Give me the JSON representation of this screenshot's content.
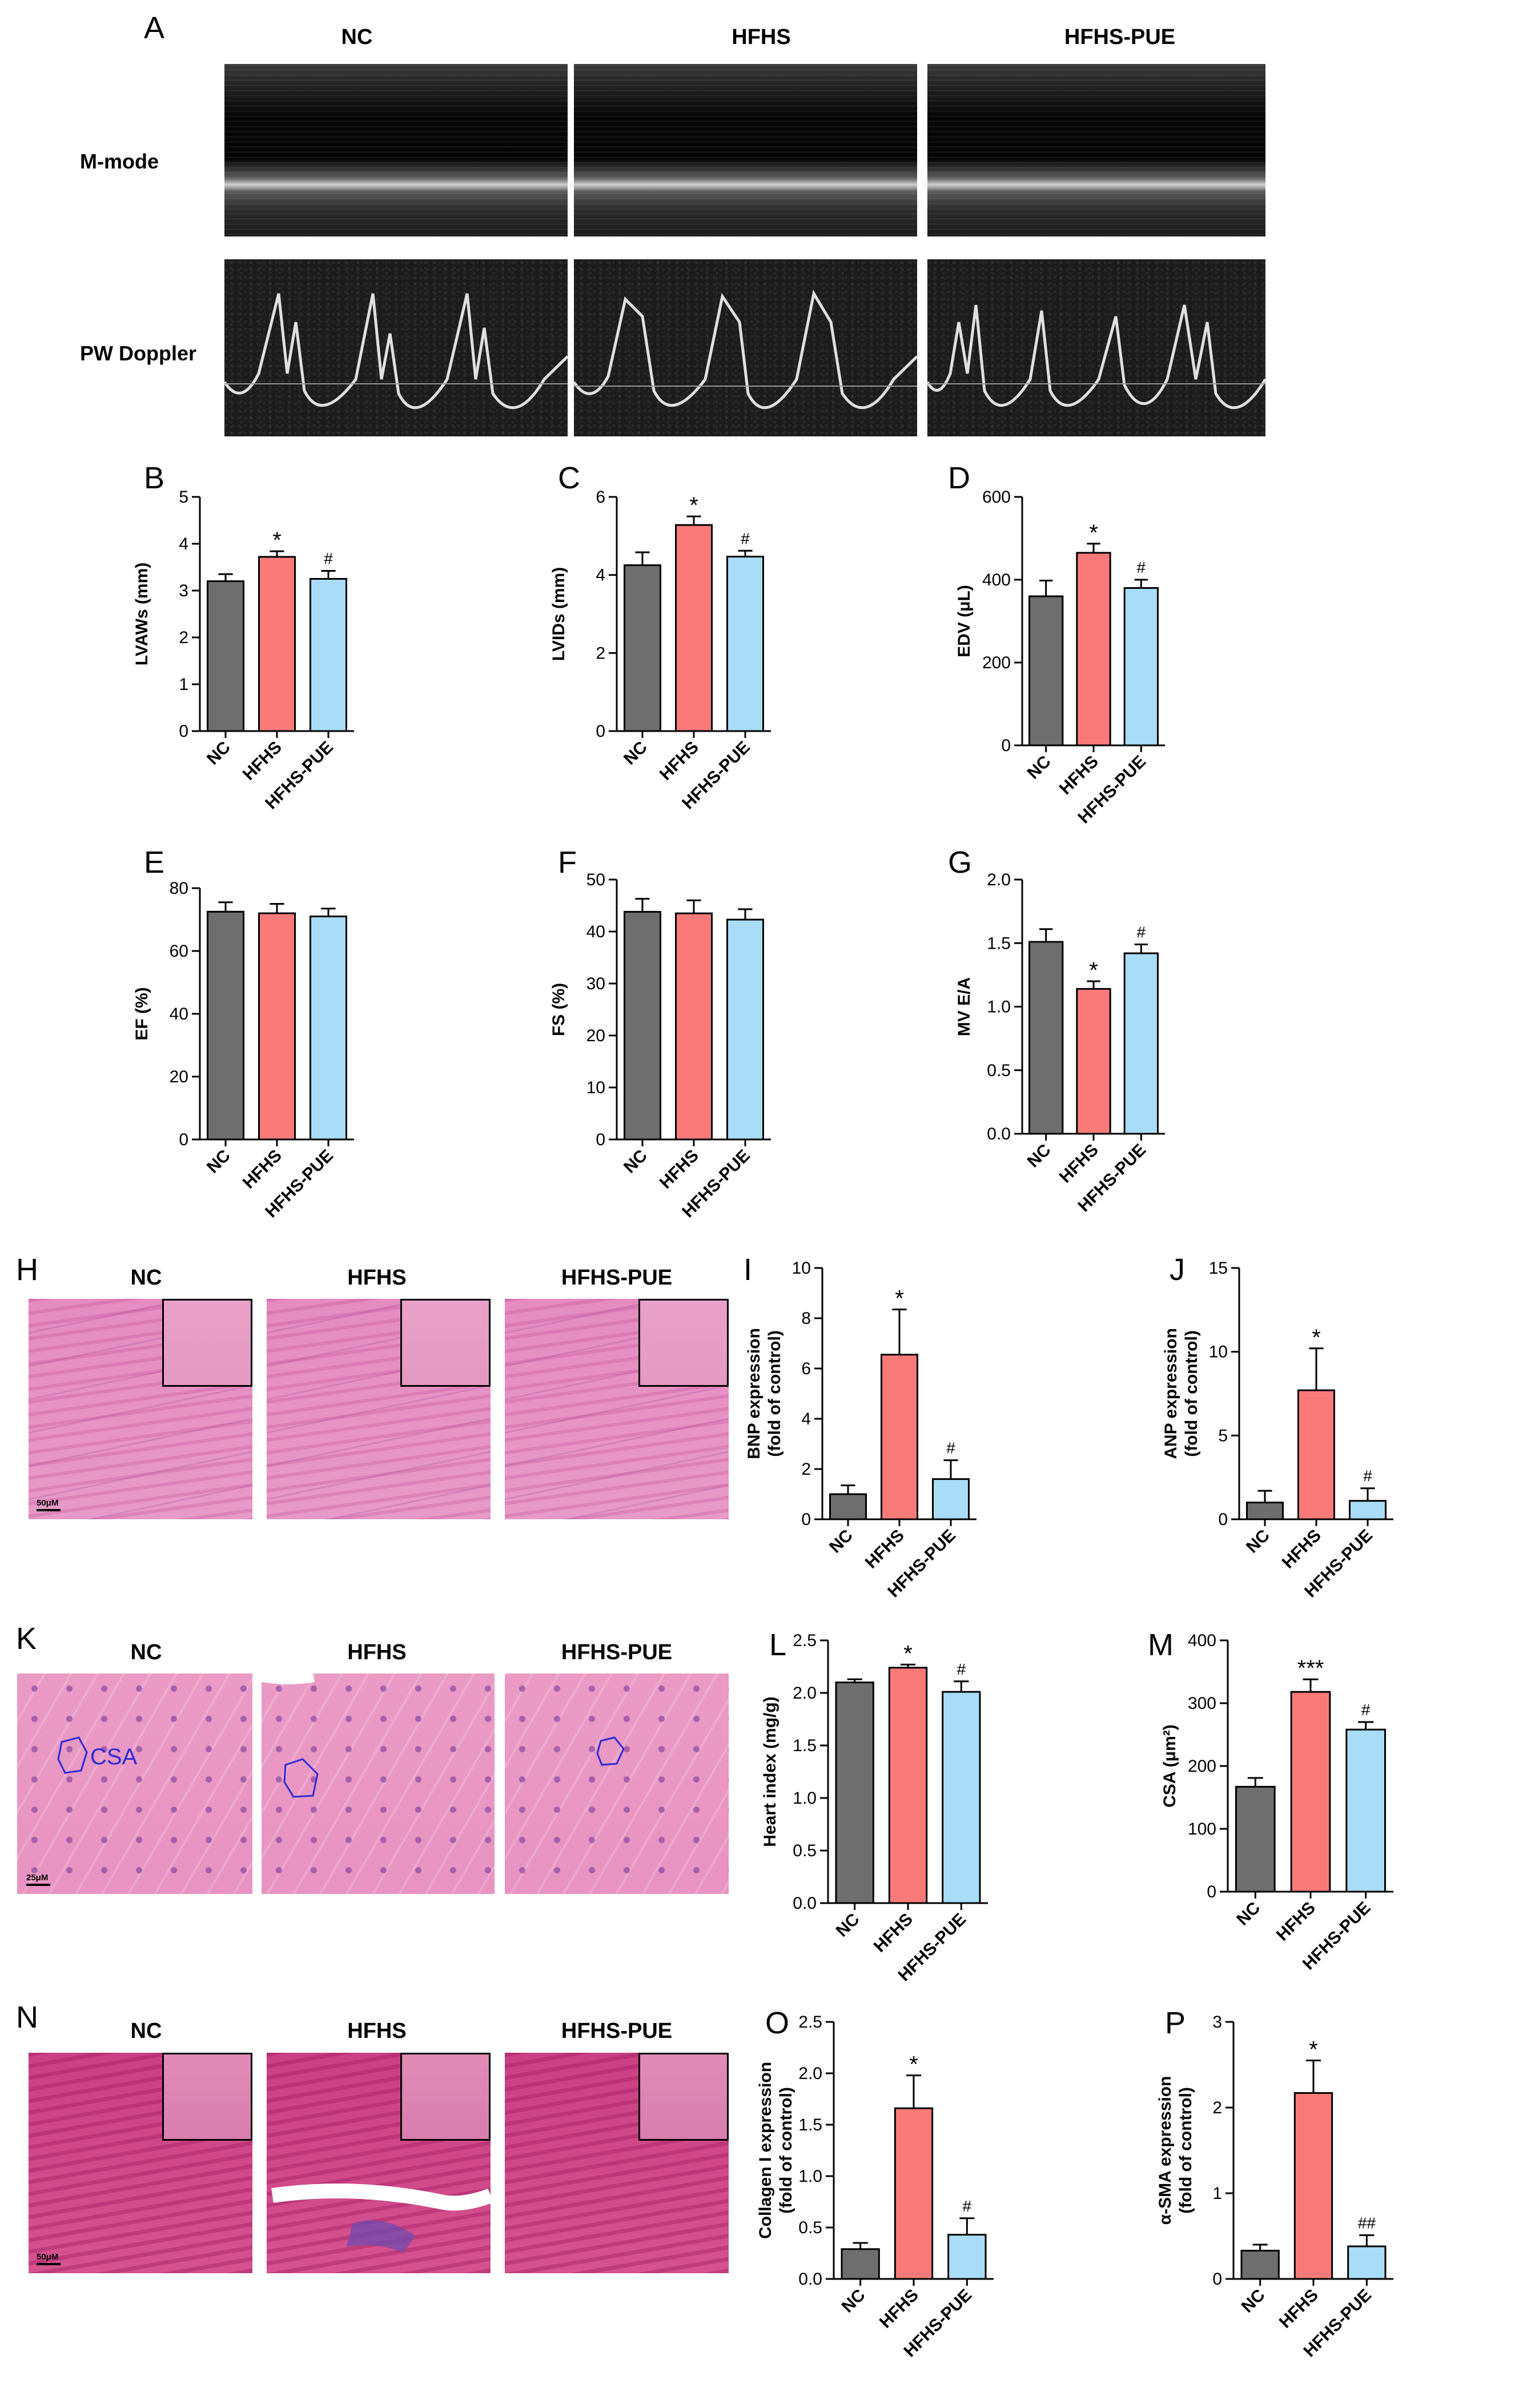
{
  "colors": {
    "nc": "#6e6e6e",
    "hfhs": "#fa7a7a",
    "pue": "#a9dcf6"
  },
  "groups": [
    "NC",
    "HFHS",
    "HFHS-PUE"
  ],
  "panel_A": {
    "letter": "A",
    "rows": [
      "M-mode",
      "PW Doppler"
    ],
    "groups": [
      "NC",
      "HFHS",
      "HFHS-PUE"
    ]
  },
  "panel_H": {
    "letter": "H",
    "groups": [
      "NC",
      "HFHS",
      "HFHS-PUE"
    ],
    "scale": "50μM"
  },
  "panel_K": {
    "letter": "K",
    "groups": [
      "NC",
      "HFHS",
      "HFHS-PUE"
    ],
    "scale": "25μM",
    "roi_label": "CSA"
  },
  "panel_N": {
    "letter": "N",
    "groups": [
      "NC",
      "HFHS",
      "HFHS-PUE"
    ],
    "scale": "50μM"
  },
  "chart_data": [
    {
      "id": "B",
      "type": "bar",
      "ylabel": "LVAWs (mm)",
      "categories": [
        "NC",
        "HFHS",
        "HFHS-PUE"
      ],
      "values": [
        3.2,
        3.72,
        3.25
      ],
      "errors": [
        0.15,
        0.12,
        0.17
      ],
      "ylim": [
        0,
        5
      ],
      "yticks": [
        0,
        1,
        2,
        3,
        4,
        5
      ],
      "annotations": [
        "",
        "*",
        "#"
      ]
    },
    {
      "id": "C",
      "type": "bar",
      "ylabel": "LVIDs (mm)",
      "categories": [
        "NC",
        "HFHS",
        "HFHS-PUE"
      ],
      "values": [
        4.25,
        5.28,
        4.47
      ],
      "errors": [
        0.33,
        0.22,
        0.15
      ],
      "ylim": [
        0,
        6
      ],
      "yticks": [
        0,
        2,
        4,
        6
      ],
      "annotations": [
        "",
        "*",
        "#"
      ]
    },
    {
      "id": "D",
      "type": "bar",
      "ylabel": "EDV (μL)",
      "categories": [
        "NC",
        "HFHS",
        "HFHS-PUE"
      ],
      "values": [
        360,
        465,
        380
      ],
      "errors": [
        38,
        22,
        20
      ],
      "ylim": [
        0,
        600
      ],
      "yticks": [
        0,
        200,
        400,
        600
      ],
      "annotations": [
        "",
        "*",
        "#"
      ]
    },
    {
      "id": "E",
      "type": "bar",
      "ylabel": "EF (%)",
      "categories": [
        "NC",
        "HFHS",
        "HFHS-PUE"
      ],
      "values": [
        72.5,
        72,
        71
      ],
      "errors": [
        3,
        3,
        2.5
      ],
      "ylim": [
        0,
        80
      ],
      "yticks": [
        0,
        20,
        40,
        60,
        80
      ],
      "annotations": [
        "",
        "",
        ""
      ]
    },
    {
      "id": "F",
      "type": "bar",
      "ylabel": "FS (%)",
      "categories": [
        "NC",
        "HFHS",
        "HFHS-PUE"
      ],
      "values": [
        43.8,
        43.5,
        42.3
      ],
      "errors": [
        2.5,
        2.5,
        2
      ],
      "ylim": [
        0,
        50
      ],
      "yticks": [
        0,
        10,
        20,
        30,
        40,
        50
      ],
      "annotations": [
        "",
        "",
        ""
      ]
    },
    {
      "id": "G",
      "type": "bar",
      "ylabel": "MV E/A",
      "categories": [
        "NC",
        "HFHS",
        "HFHS-PUE"
      ],
      "values": [
        1.51,
        1.14,
        1.42
      ],
      "errors": [
        0.1,
        0.06,
        0.07
      ],
      "ylim": [
        0,
        2.0
      ],
      "yticks": [
        0.0,
        0.5,
        1.0,
        1.5,
        2.0
      ],
      "tickDecimals": 1,
      "annotations": [
        "",
        "*",
        "#"
      ]
    },
    {
      "id": "I",
      "type": "bar",
      "ylabel": "BNP expression|(fold of control)",
      "categories": [
        "NC",
        "HFHS",
        "HFHS-PUE"
      ],
      "values": [
        1.0,
        6.55,
        1.6
      ],
      "errors": [
        0.35,
        1.8,
        0.75
      ],
      "ylim": [
        0,
        10
      ],
      "yticks": [
        0,
        2,
        4,
        6,
        8,
        10
      ],
      "annotations": [
        "",
        "*",
        "#"
      ]
    },
    {
      "id": "J",
      "type": "bar",
      "ylabel": "ANP expression|(fold of control)",
      "categories": [
        "NC",
        "HFHS",
        "HFHS-PUE"
      ],
      "values": [
        1.0,
        7.7,
        1.1
      ],
      "errors": [
        0.7,
        2.5,
        0.75
      ],
      "ylim": [
        0,
        15
      ],
      "yticks": [
        0,
        5,
        10,
        15
      ],
      "annotations": [
        "",
        "*",
        "#"
      ]
    },
    {
      "id": "L",
      "type": "bar",
      "ylabel": "Heart index (mg/g)",
      "categories": [
        "NC",
        "HFHS",
        "HFHS-PUE"
      ],
      "values": [
        2.1,
        2.24,
        2.01
      ],
      "errors": [
        0.03,
        0.03,
        0.1
      ],
      "ylim": [
        0,
        2.5
      ],
      "yticks": [
        0.0,
        0.5,
        1.0,
        1.5,
        2.0,
        2.5
      ],
      "tickDecimals": 1,
      "annotations": [
        "",
        "*",
        "#"
      ]
    },
    {
      "id": "M",
      "type": "bar",
      "ylabel": "CSA (μm²)",
      "categories": [
        "NC",
        "HFHS",
        "HFHS-PUE"
      ],
      "values": [
        167,
        318,
        258
      ],
      "errors": [
        14,
        20,
        12
      ],
      "ylim": [
        0,
        400
      ],
      "yticks": [
        0,
        100,
        200,
        300,
        400
      ],
      "annotations": [
        "",
        "***",
        "#"
      ]
    },
    {
      "id": "O",
      "type": "bar",
      "ylabel": "Collagen I  expression|(fold of control)",
      "categories": [
        "NC",
        "HFHS",
        "HFHS-PUE"
      ],
      "values": [
        0.29,
        1.66,
        0.43
      ],
      "errors": [
        0.06,
        0.32,
        0.16
      ],
      "ylim": [
        0,
        2.5
      ],
      "yticks": [
        0.0,
        0.5,
        1.0,
        1.5,
        2.0,
        2.5
      ],
      "tickDecimals": 1,
      "annotations": [
        "",
        "*",
        "#"
      ]
    },
    {
      "id": "P",
      "type": "bar",
      "ylabel": "α-SMA  expression|(fold of control)",
      "categories": [
        "NC",
        "HFHS",
        "HFHS-PUE"
      ],
      "values": [
        0.33,
        2.17,
        0.38
      ],
      "errors": [
        0.07,
        0.38,
        0.13
      ],
      "ylim": [
        0,
        3
      ],
      "yticks": [
        0,
        1,
        2,
        3
      ],
      "annotations": [
        "",
        "*",
        "##"
      ]
    }
  ]
}
